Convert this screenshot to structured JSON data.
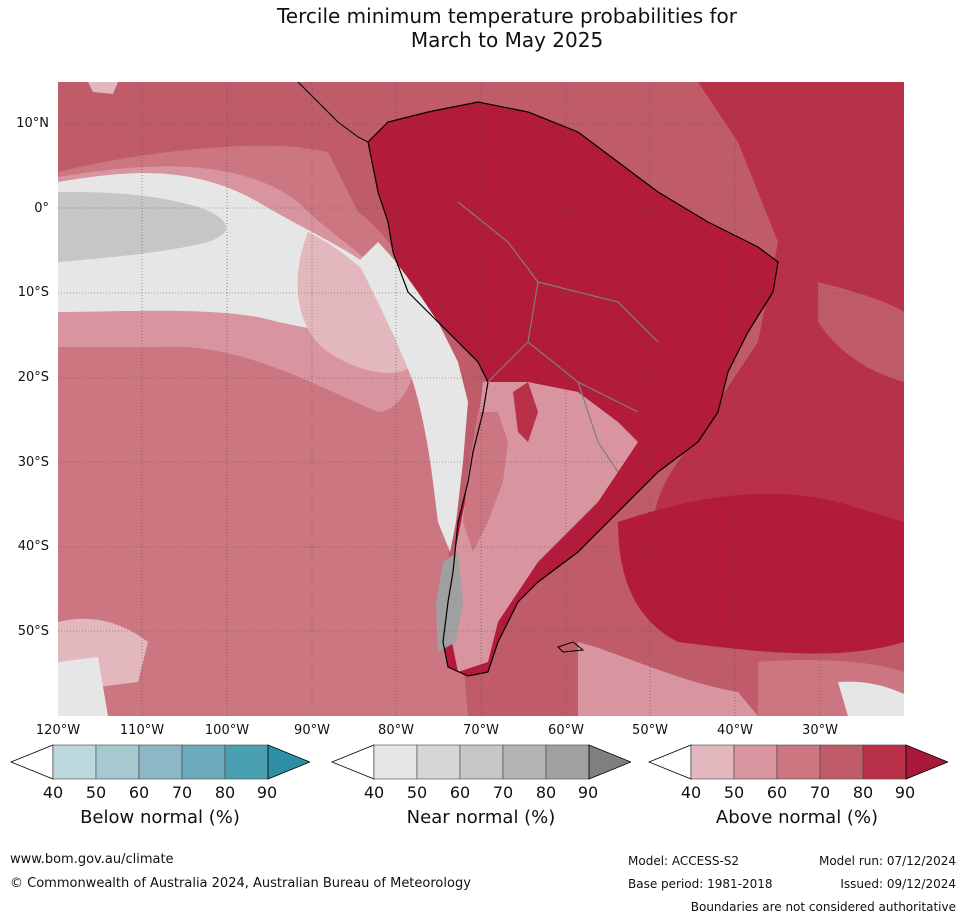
{
  "title": {
    "line1": "Tercile minimum temperature probabilities for",
    "line2": "March to May 2025"
  },
  "map": {
    "lat_labels": [
      "10°N",
      "0°",
      "10°S",
      "20°S",
      "30°S",
      "40°S",
      "50°S"
    ],
    "lon_labels": [
      "120°W",
      "110°W",
      "100°W",
      "90°W",
      "80°W",
      "70°W",
      "60°W",
      "50°W",
      "40°W",
      "30°W"
    ]
  },
  "legend": {
    "ticks": [
      "40",
      "50",
      "60",
      "70",
      "80",
      "90"
    ],
    "below": {
      "label": "Below normal (%)",
      "colors": [
        "#ffffff",
        "#bdd7de",
        "#a6c9d0",
        "#8bb8c4",
        "#6aaaba",
        "#4a9fb0",
        "#2d8fa3"
      ]
    },
    "near": {
      "label": "Near normal (%)",
      "colors": [
        "#ffffff",
        "#e6e6e6",
        "#d6d6d6",
        "#c6c6c6",
        "#b4b4b4",
        "#a0a0a0",
        "#7f7f7f"
      ]
    },
    "above": {
      "label": "Above normal (%)",
      "colors": [
        "#ffffff",
        "#e2b7bd",
        "#d8959f",
        "#cc7682",
        "#c05b69",
        "#b83148",
        "#a8183a"
      ]
    }
  },
  "footer": {
    "website": "www.bom.gov.au/climate",
    "copyright": "© Commonwealth of Australia 2024, Australian Bureau of Meteorology",
    "model": "Model: ACCESS-S2",
    "base_period": "Base period: 1981-2018",
    "model_run": "Model run: 07/12/2024",
    "issued": "Issued: 09/12/2024",
    "disclaimer": "Boundaries are not considered authoritative"
  }
}
